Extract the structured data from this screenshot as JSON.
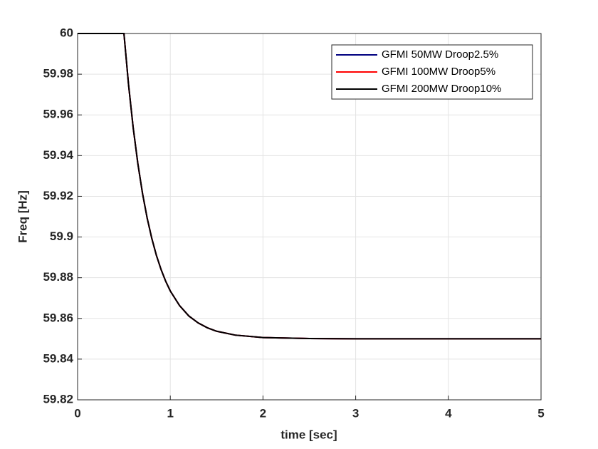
{
  "chart_data": {
    "type": "line",
    "xlabel": "time [sec]",
    "ylabel": "Freq [Hz]",
    "x": [
      0,
      0.5,
      0.55,
      0.6,
      0.65,
      0.7,
      0.75,
      0.8,
      0.85,
      0.9,
      0.95,
      1.0,
      1.1,
      1.2,
      1.3,
      1.4,
      1.5,
      1.7,
      2.0,
      2.5,
      3,
      4,
      5
    ],
    "series": [
      {
        "name": "GFMI 50MW Droop2.5%",
        "color": "#000080",
        "values": [
          60,
          60,
          59.9747,
          59.9536,
          59.9361,
          59.9215,
          59.9094,
          59.8994,
          59.891,
          59.8841,
          59.8783,
          59.8735,
          59.8663,
          59.8612,
          59.8578,
          59.8554,
          59.8537,
          59.8518,
          59.8506,
          59.8501,
          59.85,
          59.85,
          59.85
        ]
      },
      {
        "name": "GFMI 100MW Droop5%",
        "color": "#ff0000",
        "values": [
          60,
          60,
          59.9747,
          59.9536,
          59.9361,
          59.9215,
          59.9094,
          59.8994,
          59.891,
          59.8841,
          59.8783,
          59.8735,
          59.8663,
          59.8612,
          59.8578,
          59.8554,
          59.8537,
          59.8518,
          59.8506,
          59.8501,
          59.85,
          59.85,
          59.85
        ]
      },
      {
        "name": "GFMI 200MW Droop10%",
        "color": "#000000",
        "values": [
          60,
          60,
          59.9747,
          59.9536,
          59.9361,
          59.9215,
          59.9094,
          59.8994,
          59.891,
          59.8841,
          59.8783,
          59.8735,
          59.8663,
          59.8612,
          59.8578,
          59.8554,
          59.8537,
          59.8518,
          59.8506,
          59.8501,
          59.85,
          59.85,
          59.85
        ]
      }
    ],
    "xlim": [
      0,
      5
    ],
    "xticks": [
      0,
      1,
      2,
      3,
      4,
      5
    ],
    "ylim": [
      59.82,
      60
    ],
    "yticks": [
      59.82,
      59.84,
      59.86,
      59.88,
      59.9,
      59.92,
      59.94,
      59.96,
      59.98,
      60
    ],
    "grid": true,
    "legend": "upper right"
  }
}
